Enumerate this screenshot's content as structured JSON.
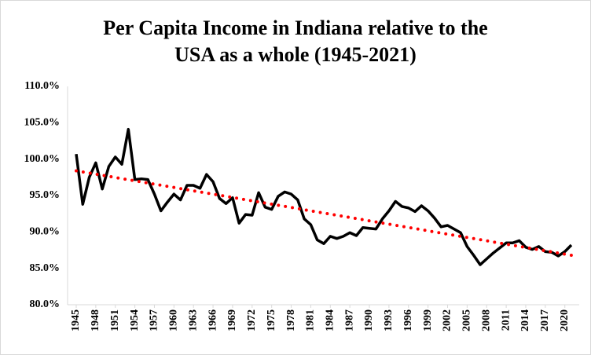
{
  "chart_data": {
    "type": "line",
    "title": [
      "Per Capita Income in Indiana relative to the",
      "USA as a whole (1945-2021)"
    ],
    "x": [
      1945,
      1946,
      1947,
      1948,
      1949,
      1950,
      1951,
      1952,
      1953,
      1954,
      1955,
      1956,
      1957,
      1958,
      1959,
      1960,
      1961,
      1962,
      1963,
      1964,
      1965,
      1966,
      1967,
      1968,
      1969,
      1970,
      1971,
      1972,
      1973,
      1974,
      1975,
      1976,
      1977,
      1978,
      1979,
      1980,
      1981,
      1982,
      1983,
      1984,
      1985,
      1986,
      1987,
      1988,
      1989,
      1990,
      1991,
      1992,
      1993,
      1994,
      1995,
      1996,
      1997,
      1998,
      1999,
      2000,
      2001,
      2002,
      2003,
      2004,
      2005,
      2006,
      2007,
      2008,
      2009,
      2010,
      2011,
      2012,
      2013,
      2014,
      2015,
      2016,
      2017,
      2018,
      2019,
      2020,
      2021
    ],
    "series": [
      {
        "color": "#000000",
        "style": "solid",
        "values": [
          100.7,
          93.8,
          97.5,
          99.5,
          95.9,
          99.0,
          100.3,
          99.3,
          104.1,
          97.2,
          97.3,
          97.2,
          95.2,
          92.9,
          94.1,
          95.2,
          94.4,
          96.4,
          96.4,
          96.0,
          97.9,
          96.9,
          94.6,
          93.9,
          94.7,
          91.2,
          92.4,
          92.3,
          95.4,
          93.4,
          93.1,
          94.9,
          95.5,
          95.2,
          94.4,
          91.8,
          91.0,
          88.9,
          88.4,
          89.4,
          89.1,
          89.4,
          89.9,
          89.5,
          90.6,
          90.5,
          90.4,
          91.8,
          92.9,
          94.2,
          93.5,
          93.3,
          92.8,
          93.6,
          92.9,
          91.9,
          90.7,
          90.9,
          90.4,
          89.9,
          88.0,
          86.8,
          85.5,
          86.3,
          87.1,
          87.8,
          88.5,
          88.5,
          88.8,
          87.9,
          87.6,
          88.0,
          87.3,
          87.2,
          86.7,
          87.3,
          88.2
        ]
      },
      {
        "color": "#ff0000",
        "style": "dotted",
        "x": [
          1945,
          2021
        ],
        "values": [
          98.4,
          86.8
        ]
      }
    ],
    "xlim": [
      1945,
      2021
    ],
    "xticks": [
      1945,
      1948,
      1951,
      1954,
      1957,
      1960,
      1963,
      1966,
      1969,
      1972,
      1975,
      1978,
      1981,
      1984,
      1987,
      1990,
      1993,
      1996,
      1999,
      2002,
      2005,
      2008,
      2011,
      2014,
      2017,
      2020
    ],
    "ylim": [
      80,
      110
    ],
    "yticks": [
      {
        "value": 80,
        "label": "80.0%"
      },
      {
        "value": 85,
        "label": "85.0%"
      },
      {
        "value": 90,
        "label": "90.0%"
      },
      {
        "value": 95,
        "label": "95.0%"
      },
      {
        "value": 100,
        "label": "100.0%"
      },
      {
        "value": 105,
        "label": "105.0%"
      },
      {
        "value": 110,
        "label": "110.0%"
      }
    ],
    "grid": false
  }
}
